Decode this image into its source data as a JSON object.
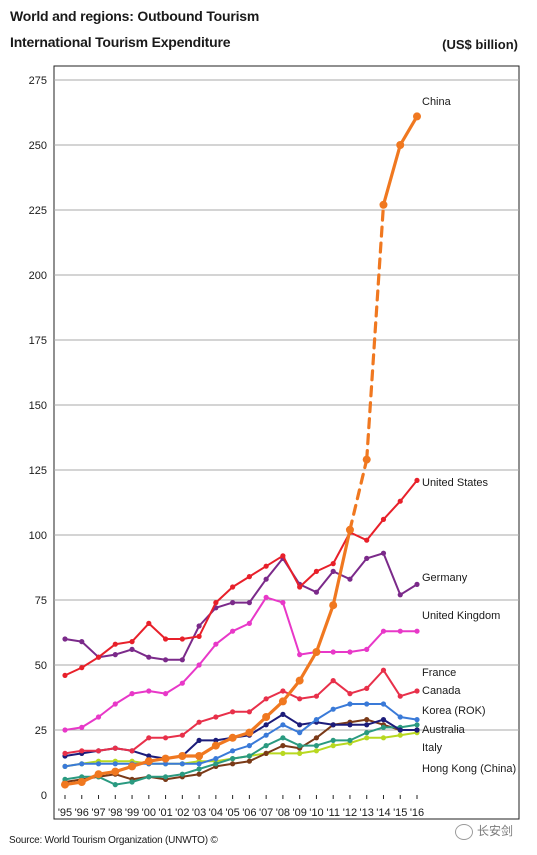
{
  "header": {
    "title": "World and regions: Outbound Tourism",
    "subtitle": "International Tourism Expenditure",
    "unit": "(US$ billion)"
  },
  "footer": {
    "source": "Source: World Tourism Organization (UNWTO) ©",
    "watermark": "长安剑"
  },
  "chart_data": {
    "type": "line",
    "title": "World and regions: Outbound Tourism",
    "subtitle": "International Tourism Expenditure",
    "ylabel": "(US$ billion)",
    "xlabel": "",
    "ylim": [
      0,
      275
    ],
    "yticks": [
      0,
      25,
      50,
      75,
      100,
      125,
      150,
      175,
      200,
      225,
      250,
      275
    ],
    "grid": true,
    "categories": [
      "'95",
      "'96",
      "'97",
      "'98",
      "'99",
      "'00",
      "'01",
      "'02",
      "'03",
      "'04",
      "'05",
      "'06",
      "'07",
      "'08",
      "'09",
      "'10",
      "'11",
      "'12",
      "'13",
      "'14",
      "'15",
      "'16"
    ],
    "series": [
      {
        "name": "China",
        "color": "#f07820",
        "dashed_segment": [
          "'12",
          "'14"
        ],
        "values": [
          4,
          5,
          8,
          9,
          11,
          13,
          14,
          15,
          15,
          19,
          22,
          24,
          30,
          36,
          44,
          55,
          73,
          102,
          129,
          227,
          250,
          261
        ]
      },
      {
        "name": "United States",
        "color": "#e8202a",
        "values": [
          46,
          49,
          53,
          58,
          59,
          66,
          60,
          60,
          61,
          74,
          80,
          84,
          88,
          92,
          80,
          86,
          89,
          101,
          98,
          106,
          113,
          121
        ]
      },
      {
        "name": "Germany",
        "color": "#7b2a8a",
        "values": [
          60,
          59,
          53,
          54,
          56,
          53,
          52,
          52,
          65,
          72,
          74,
          74,
          83,
          91,
          81,
          78,
          86,
          83,
          91,
          93,
          77,
          81
        ]
      },
      {
        "name": "United Kingdom",
        "color": "#e838c8",
        "values": [
          25,
          26,
          30,
          35,
          39,
          40,
          39,
          43,
          50,
          58,
          63,
          66,
          76,
          74,
          54,
          55,
          55,
          55,
          56,
          63,
          63,
          63
        ]
      },
      {
        "name": "France",
        "color": "#e8304a",
        "values": [
          16,
          17,
          17,
          18,
          17,
          22,
          22,
          23,
          28,
          30,
          32,
          32,
          37,
          40,
          37,
          38,
          44,
          39,
          41,
          48,
          38,
          40
        ]
      },
      {
        "name": "Canada",
        "color": "#3a7ad8",
        "values": [
          11,
          12,
          12,
          12,
          12,
          12,
          12,
          12,
          12,
          14,
          17,
          19,
          23,
          27,
          24,
          29,
          33,
          35,
          35,
          35,
          30,
          29
        ]
      },
      {
        "name": "Korea (ROK)",
        "color": "#1c1c7a",
        "values": [
          15,
          16,
          17,
          18,
          17,
          15,
          14,
          15,
          21,
          21,
          22,
          23,
          27,
          31,
          27,
          28,
          27,
          27,
          27,
          29,
          25,
          25
        ]
      },
      {
        "name": "Australia",
        "color": "#2a9a80",
        "values": [
          6,
          7,
          7,
          4,
          5,
          7,
          7,
          8,
          10,
          12,
          14,
          15,
          19,
          22,
          19,
          19,
          21,
          21,
          24,
          26,
          26,
          27
        ]
      },
      {
        "name": "Italy",
        "color": "#7a3a18",
        "values": [
          5,
          6,
          7,
          8,
          6,
          7,
          6,
          7,
          8,
          11,
          12,
          13,
          16,
          19,
          18,
          22,
          27,
          28,
          29,
          27,
          25,
          25
        ]
      },
      {
        "name": "Hong Kong (China)",
        "color": "#b8d820",
        "values": [
          11,
          12,
          13,
          13,
          13,
          12,
          12,
          12,
          13,
          13,
          14,
          15,
          16,
          16,
          16,
          17,
          19,
          20,
          22,
          22,
          23,
          24
        ]
      }
    ],
    "legend": "labels at right end of lines"
  }
}
